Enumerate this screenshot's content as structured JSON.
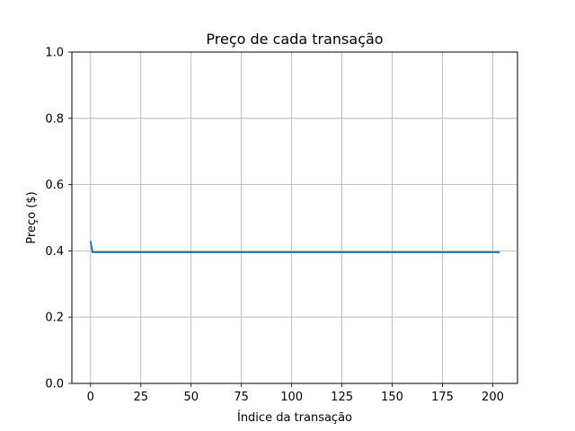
{
  "chart_data": {
    "type": "line",
    "title": "Preço de cada transação",
    "xlabel": "Índice da transação",
    "ylabel": "Preço ($)",
    "xlim": [
      -9.3,
      212.3
    ],
    "ylim": [
      0,
      1
    ],
    "xticks": [
      0,
      25,
      50,
      75,
      100,
      125,
      150,
      175,
      200
    ],
    "yticks": [
      0.0,
      0.2,
      0.4,
      0.6,
      0.8,
      1.0
    ],
    "xtick_labels": [
      "0",
      "25",
      "50",
      "75",
      "100",
      "125",
      "150",
      "175",
      "200"
    ],
    "ytick_labels": [
      "0.0",
      "0.2",
      "0.4",
      "0.6",
      "0.8",
      "1.0"
    ],
    "grid": true,
    "series": [
      {
        "color": "#1f77b4",
        "x": [
          0,
          1,
          203
        ],
        "y": [
          0.427,
          0.396,
          0.396
        ]
      }
    ]
  }
}
